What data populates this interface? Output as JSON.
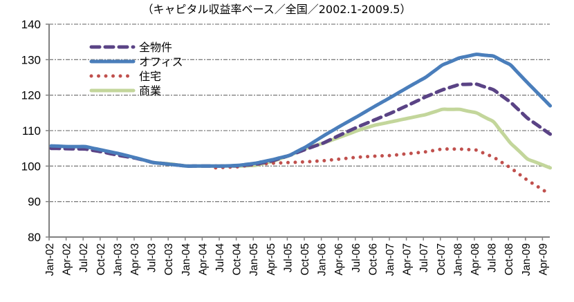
{
  "chart_data": {
    "type": "line",
    "title": "（キャピタル収益率ベース／全国／2002.1-2009.5）",
    "xlabel": "",
    "ylabel": "",
    "ylim": [
      80,
      140
    ],
    "yticks": [
      "80",
      "90",
      "100",
      "110",
      "120",
      "130",
      "140"
    ],
    "ytick_values": [
      80,
      90,
      100,
      110,
      120,
      130,
      140
    ],
    "grid": true,
    "legend_position": "top-left",
    "x_start": "2002-01",
    "x_end": "2009-05",
    "x_frequency": "monthly",
    "xtick_labels": [
      "Jan-02",
      "Apr-02",
      "Jul-02",
      "Oct-02",
      "Jan-03",
      "Apr-03",
      "Jul-03",
      "Oct-03",
      "Jan-04",
      "Apr-04",
      "Jul-04",
      "Oct-04",
      "Jan-05",
      "Apr-05",
      "Jul-05",
      "Oct-05",
      "Jan-06",
      "Apr-06",
      "Jul-06",
      "Oct-06",
      "Jan-07",
      "Apr-07",
      "Jul-07",
      "Oct-07",
      "Jan-08",
      "Apr-08",
      "Jul-08",
      "Oct-08",
      "Jan-09",
      "Apr-09"
    ],
    "series": [
      {
        "name": "全物件",
        "color": "#5a4385",
        "style": "dashed",
        "start_index": 0,
        "anchors": [
          [
            0,
            105.0
          ],
          [
            3,
            104.9
          ],
          [
            6,
            104.8
          ],
          [
            9,
            104.0
          ],
          [
            12,
            103.0
          ],
          [
            15,
            102.2
          ],
          [
            18,
            101.0
          ],
          [
            21,
            100.5
          ],
          [
            24,
            100.0
          ],
          [
            27,
            100.0
          ],
          [
            30,
            100.0
          ],
          [
            33,
            100.1
          ],
          [
            36,
            100.5
          ],
          [
            39,
            101.5
          ],
          [
            42,
            103.0
          ],
          [
            45,
            104.8
          ],
          [
            48,
            106.5
          ],
          [
            51,
            108.8
          ],
          [
            54,
            111.0
          ],
          [
            57,
            113.0
          ],
          [
            60,
            115.0
          ],
          [
            63,
            117.2
          ],
          [
            66,
            119.5
          ],
          [
            69,
            121.5
          ],
          [
            72,
            123.0
          ],
          [
            75,
            123.1
          ],
          [
            78,
            121.5
          ],
          [
            81,
            118.0
          ],
          [
            84,
            113.5
          ],
          [
            88,
            109.0
          ]
        ]
      },
      {
        "name": "オフィス",
        "color": "#4a7ebb",
        "style": "solid",
        "start_index": 0,
        "anchors": [
          [
            0,
            105.7
          ],
          [
            3,
            105.5
          ],
          [
            6,
            105.5
          ],
          [
            9,
            104.5
          ],
          [
            12,
            103.5
          ],
          [
            15,
            102.3
          ],
          [
            18,
            101.0
          ],
          [
            21,
            100.5
          ],
          [
            24,
            100.0
          ],
          [
            27,
            100.0
          ],
          [
            30,
            100.0
          ],
          [
            33,
            100.2
          ],
          [
            36,
            100.8
          ],
          [
            39,
            101.8
          ],
          [
            42,
            103.0
          ],
          [
            45,
            105.5
          ],
          [
            48,
            108.5
          ],
          [
            51,
            111.3
          ],
          [
            54,
            114.0
          ],
          [
            57,
            116.8
          ],
          [
            60,
            119.5
          ],
          [
            63,
            122.3
          ],
          [
            66,
            125.0
          ],
          [
            69,
            128.5
          ],
          [
            72,
            130.5
          ],
          [
            75,
            131.5
          ],
          [
            78,
            131.0
          ],
          [
            81,
            128.5
          ],
          [
            84,
            123.5
          ],
          [
            88,
            117.0
          ]
        ]
      },
      {
        "name": "住宅",
        "color": "#c0504d",
        "style": "dotted",
        "start_index": 29,
        "anchors": [
          [
            29,
            99.5
          ],
          [
            33,
            99.8
          ],
          [
            36,
            100.5
          ],
          [
            39,
            100.8
          ],
          [
            42,
            101.0
          ],
          [
            45,
            101.2
          ],
          [
            48,
            101.5
          ],
          [
            51,
            102.0
          ],
          [
            54,
            102.5
          ],
          [
            57,
            102.8
          ],
          [
            60,
            103.0
          ],
          [
            63,
            103.5
          ],
          [
            66,
            104.0
          ],
          [
            69,
            104.8
          ],
          [
            72,
            104.8
          ],
          [
            75,
            104.5
          ],
          [
            78,
            102.5
          ],
          [
            81,
            99.5
          ],
          [
            84,
            96.0
          ],
          [
            88,
            92.0
          ]
        ]
      },
      {
        "name": "商業",
        "color": "#c3d69b",
        "style": "solid",
        "start_index": 18,
        "anchors": [
          [
            18,
            101.0
          ],
          [
            21,
            100.6
          ],
          [
            24,
            100.0
          ],
          [
            27,
            100.0
          ],
          [
            30,
            100.0
          ],
          [
            33,
            100.0
          ],
          [
            36,
            100.2
          ],
          [
            39,
            101.3
          ],
          [
            42,
            103.0
          ],
          [
            45,
            105.0
          ],
          [
            48,
            106.5
          ],
          [
            51,
            108.2
          ],
          [
            54,
            110.0
          ],
          [
            57,
            111.5
          ],
          [
            60,
            112.5
          ],
          [
            63,
            113.5
          ],
          [
            66,
            114.5
          ],
          [
            69,
            116.0
          ],
          [
            72,
            116.0
          ],
          [
            75,
            115.0
          ],
          [
            78,
            112.5
          ],
          [
            81,
            106.5
          ],
          [
            84,
            102.0
          ],
          [
            88,
            99.5
          ]
        ]
      }
    ]
  },
  "colors": {
    "axis": "#808080",
    "grid": "#808080"
  }
}
